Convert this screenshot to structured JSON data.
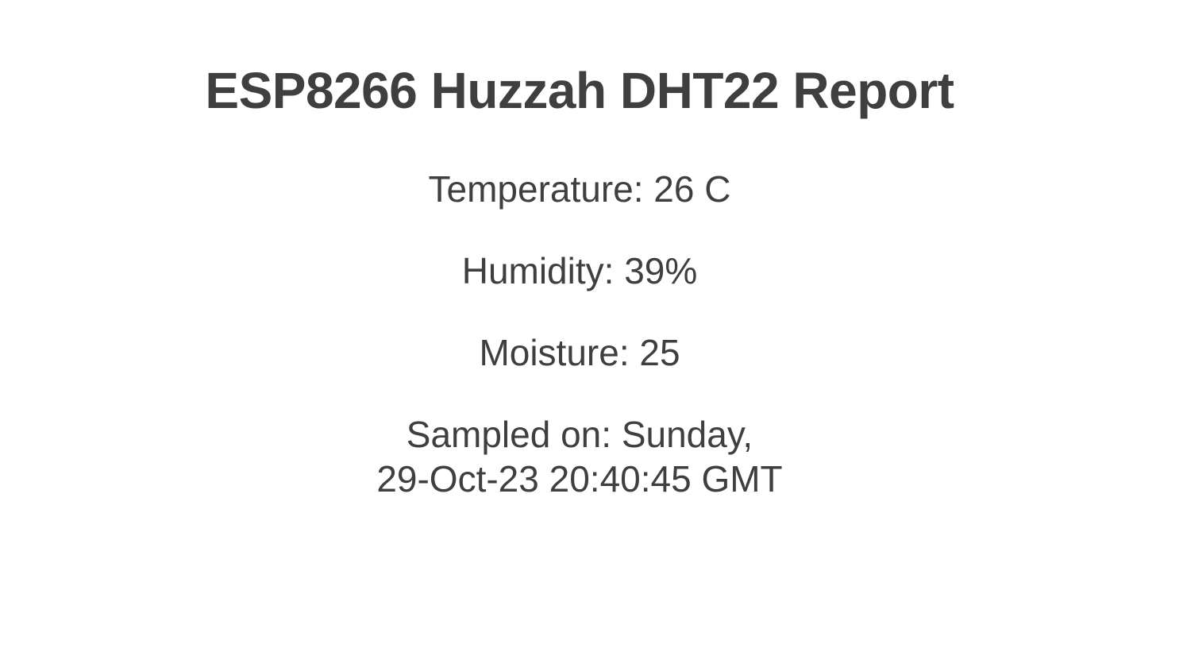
{
  "page": {
    "title": "ESP8266 Huzzah DHT22 Report"
  },
  "readings": {
    "temperature": "Temperature: 26 C",
    "humidity": "Humidity: 39%",
    "moisture": "Moisture: 25",
    "sampled_line1": "Sampled on: Sunday,",
    "sampled_line2": "29-Oct-23 20:40:45 GMT"
  },
  "colors": {
    "text": "#3f3f3f",
    "background": "#ffffff"
  }
}
